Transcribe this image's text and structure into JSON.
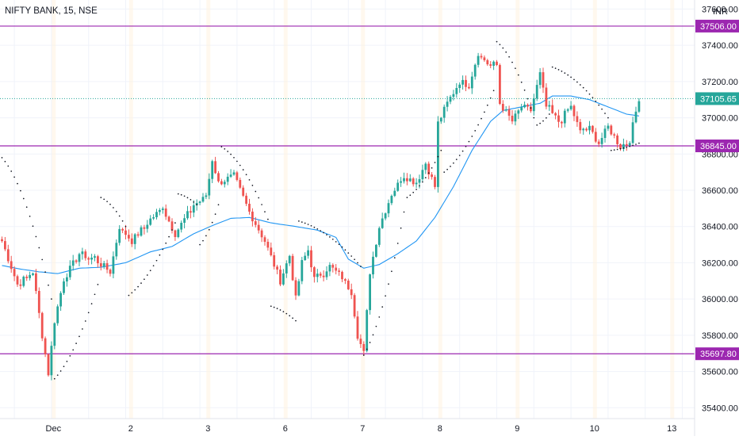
{
  "chart_data": {
    "type": "candlestick",
    "title": "NIFTY BANK, 15, NSE",
    "currency": "INR",
    "y_axis": {
      "ticks": [
        35400,
        35600,
        35800,
        36000,
        36200,
        36400,
        36600,
        36800,
        37000,
        37200,
        37400,
        37600
      ],
      "tick_labels": [
        "35400.00",
        "35600.00",
        "35800.00",
        "36000.00",
        "36200.00",
        "36400.00",
        "36600.00",
        "36800.00",
        "37000.00",
        "37200.00",
        "37400.00",
        "37600.00"
      ],
      "range": [
        35340,
        37650
      ]
    },
    "x_axis": {
      "labels": [
        "Dec",
        "2",
        "3",
        "6",
        "7",
        "8",
        "9",
        "10",
        "13"
      ],
      "label_bar_index": [
        17,
        42,
        67,
        92,
        117,
        142,
        167,
        192,
        217
      ]
    },
    "horizontal_levels": [
      {
        "value": 37506.0,
        "label": "37506.00",
        "color": "#9c27b0"
      },
      {
        "value": 36845.0,
        "label": "36845.00",
        "color": "#9c27b0"
      },
      {
        "value": 35697.8,
        "label": "35697.80",
        "color": "#9c27b0"
      }
    ],
    "current_price": {
      "value": 37105.65,
      "label": "37105.65",
      "color": "#26a69a"
    },
    "colors": {
      "up": "#26a69a",
      "down": "#ef5350",
      "ma": "#2196f3",
      "sar": "#131722",
      "grid": "#f0f3fa"
    },
    "grid": true,
    "legend": "none",
    "day_anchors": [
      {
        "bar": 0,
        "price": 36320
      },
      {
        "bar": 5,
        "price": 36080
      },
      {
        "bar": 10,
        "price": 36150
      },
      {
        "bar": 13,
        "price": 35800
      },
      {
        "bar": 15,
        "price": 35590
      },
      {
        "bar": 17,
        "price": 35880
      },
      {
        "bar": 20,
        "price": 36110
      },
      {
        "bar": 25,
        "price": 36250
      },
      {
        "bar": 30,
        "price": 36220
      },
      {
        "bar": 35,
        "price": 36150
      },
      {
        "bar": 38,
        "price": 36400
      },
      {
        "bar": 42,
        "price": 36320
      },
      {
        "bar": 48,
        "price": 36440
      },
      {
        "bar": 52,
        "price": 36500
      },
      {
        "bar": 56,
        "price": 36360
      },
      {
        "bar": 62,
        "price": 36520
      },
      {
        "bar": 66,
        "price": 36560
      },
      {
        "bar": 68,
        "price": 36770
      },
      {
        "bar": 70,
        "price": 36640
      },
      {
        "bar": 75,
        "price": 36680
      },
      {
        "bar": 80,
        "price": 36480
      },
      {
        "bar": 85,
        "price": 36320
      },
      {
        "bar": 90,
        "price": 36100
      },
      {
        "bar": 93,
        "price": 36240
      },
      {
        "bar": 95,
        "price": 36000
      },
      {
        "bar": 97,
        "price": 36200
      },
      {
        "bar": 99,
        "price": 36270
      },
      {
        "bar": 101,
        "price": 36110
      },
      {
        "bar": 106,
        "price": 36180
      },
      {
        "bar": 110,
        "price": 36120
      },
      {
        "bar": 113,
        "price": 36040
      },
      {
        "bar": 115,
        "price": 35800
      },
      {
        "bar": 117,
        "price": 35700
      },
      {
        "bar": 119,
        "price": 36150
      },
      {
        "bar": 122,
        "price": 36400
      },
      {
        "bar": 126,
        "price": 36580
      },
      {
        "bar": 130,
        "price": 36680
      },
      {
        "bar": 134,
        "price": 36640
      },
      {
        "bar": 137,
        "price": 36750
      },
      {
        "bar": 140,
        "price": 36620
      },
      {
        "bar": 141,
        "price": 36970
      },
      {
        "bar": 144,
        "price": 37080
      },
      {
        "bar": 148,
        "price": 37200
      },
      {
        "bar": 151,
        "price": 37180
      },
      {
        "bar": 154,
        "price": 37360
      },
      {
        "bar": 157,
        "price": 37300
      },
      {
        "bar": 160,
        "price": 37290
      },
      {
        "bar": 161,
        "price": 37080
      },
      {
        "bar": 165,
        "price": 36980
      },
      {
        "bar": 168,
        "price": 37060
      },
      {
        "bar": 171,
        "price": 37040
      },
      {
        "bar": 174,
        "price": 37240
      },
      {
        "bar": 176,
        "price": 37060
      },
      {
        "bar": 180,
        "price": 36980
      },
      {
        "bar": 184,
        "price": 37060
      },
      {
        "bar": 187,
        "price": 36920
      },
      {
        "bar": 190,
        "price": 36940
      },
      {
        "bar": 193,
        "price": 36860
      },
      {
        "bar": 196,
        "price": 36950
      },
      {
        "bar": 200,
        "price": 36840
      },
      {
        "bar": 203,
        "price": 36880
      },
      {
        "bar": 206,
        "price": 37110
      }
    ],
    "ma_anchors": [
      {
        "bar": 0,
        "price": 36185
      },
      {
        "bar": 6,
        "price": 36165
      },
      {
        "bar": 12,
        "price": 36150
      },
      {
        "bar": 18,
        "price": 36140
      },
      {
        "bar": 25,
        "price": 36170
      },
      {
        "bar": 32,
        "price": 36175
      },
      {
        "bar": 40,
        "price": 36200
      },
      {
        "bar": 48,
        "price": 36260
      },
      {
        "bar": 55,
        "price": 36290
      },
      {
        "bar": 62,
        "price": 36360
      },
      {
        "bar": 68,
        "price": 36405
      },
      {
        "bar": 74,
        "price": 36445
      },
      {
        "bar": 80,
        "price": 36450
      },
      {
        "bar": 87,
        "price": 36420
      },
      {
        "bar": 95,
        "price": 36400
      },
      {
        "bar": 102,
        "price": 36380
      },
      {
        "bar": 108,
        "price": 36340
      },
      {
        "bar": 112,
        "price": 36220
      },
      {
        "bar": 117,
        "price": 36170
      },
      {
        "bar": 122,
        "price": 36190
      },
      {
        "bar": 128,
        "price": 36250
      },
      {
        "bar": 134,
        "price": 36320
      },
      {
        "bar": 140,
        "price": 36450
      },
      {
        "bar": 146,
        "price": 36620
      },
      {
        "bar": 152,
        "price": 36820
      },
      {
        "bar": 158,
        "price": 36980
      },
      {
        "bar": 162,
        "price": 37040
      },
      {
        "bar": 168,
        "price": 37060
      },
      {
        "bar": 174,
        "price": 37080
      },
      {
        "bar": 178,
        "price": 37120
      },
      {
        "bar": 184,
        "price": 37120
      },
      {
        "bar": 190,
        "price": 37100
      },
      {
        "bar": 196,
        "price": 37060
      },
      {
        "bar": 202,
        "price": 37020
      },
      {
        "bar": 206,
        "price": 37010
      }
    ],
    "sar_segments": [
      {
        "from": 0,
        "to": 16,
        "start": 36780,
        "end": 36000,
        "side": "above"
      },
      {
        "from": 17,
        "to": 31,
        "start": 35560,
        "end": 36080,
        "side": "below"
      },
      {
        "from": 32,
        "to": 40,
        "start": 36560,
        "end": 36400,
        "side": "above"
      },
      {
        "from": 41,
        "to": 56,
        "start": 36020,
        "end": 36420,
        "side": "below"
      },
      {
        "from": 57,
        "to": 63,
        "start": 36580,
        "end": 36520,
        "side": "above"
      },
      {
        "from": 64,
        "to": 70,
        "start": 36300,
        "end": 36520,
        "side": "below"
      },
      {
        "from": 71,
        "to": 86,
        "start": 36840,
        "end": 36440,
        "side": "above"
      },
      {
        "from": 87,
        "to": 95,
        "start": 35960,
        "end": 35880,
        "side": "below"
      },
      {
        "from": 96,
        "to": 116,
        "start": 36430,
        "end": 36180,
        "side": "above"
      },
      {
        "from": 117,
        "to": 130,
        "start": 35690,
        "end": 36480,
        "side": "below"
      },
      {
        "from": 131,
        "to": 142,
        "start": 36560,
        "end": 36820,
        "side": "below"
      },
      {
        "from": 143,
        "to": 159,
        "start": 36700,
        "end": 37150,
        "side": "below"
      },
      {
        "from": 160,
        "to": 172,
        "start": 37420,
        "end": 37000,
        "side": "above"
      },
      {
        "from": 173,
        "to": 177,
        "start": 36960,
        "end": 37020,
        "side": "below"
      },
      {
        "from": 178,
        "to": 196,
        "start": 37280,
        "end": 37000,
        "side": "above"
      },
      {
        "from": 197,
        "to": 206,
        "start": 36820,
        "end": 36860,
        "side": "below"
      }
    ]
  }
}
